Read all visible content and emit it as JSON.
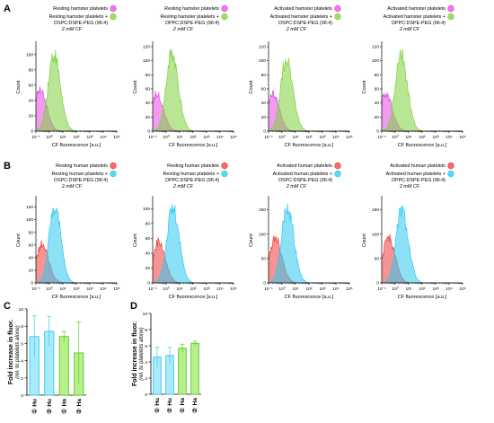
{
  "colors": {
    "hamster_resting": "#e64be6",
    "hamster_lipo": "#7ed23c",
    "human_resting": "#ee3c3c",
    "human_lipo": "#2ec8f0",
    "bar_human": "#a8ecfc",
    "bar_human_edge": "#3cc6ee",
    "bar_hamster": "#b6f08a",
    "bar_hamster_edge": "#5ac82c"
  },
  "panel_labels": {
    "a": "A",
    "b": "B",
    "c": "C",
    "d": "D"
  },
  "chart_data": [
    {
      "id": "A1",
      "type": "area",
      "panel": "A",
      "xlabel": "CF fluorescence [a.u.]",
      "ylabel": "Count",
      "xscale": "log",
      "xlim": [
        0.1,
        100000
      ],
      "ylim": [
        0,
        115
      ],
      "yticks": [
        0,
        20,
        40,
        60,
        80,
        100
      ],
      "xtick_labels": [
        "10⁻¹",
        "10⁰",
        "10¹",
        "10²",
        "10³",
        "10⁴",
        "10⁵"
      ],
      "legend": [
        "Resting hamster platelets",
        "Resting hamster platelets +",
        "DSPC:DSPE-PEG (96:4)",
        "2 mM CF"
      ],
      "series": [
        {
          "name": "Resting hamster platelets",
          "color": "hamster_resting",
          "peak_x": 0.2,
          "peak_y": 57,
          "width": 0.42
        },
        {
          "name": "Resting hamster platelets + DSPC:DSPE-PEG (96:4)",
          "color": "hamster_lipo",
          "peak_x": 2.1,
          "peak_y": 108,
          "width": 0.42
        }
      ]
    },
    {
      "id": "A2",
      "type": "area",
      "panel": "A",
      "xlabel": "CF fluorescence [a.u.]",
      "ylabel": "Count",
      "xscale": "log",
      "xlim": [
        0.1,
        100000
      ],
      "ylim": [
        0,
        125
      ],
      "yticks": [
        0,
        20,
        40,
        60,
        80,
        100,
        120
      ],
      "xtick_labels": [
        "10⁻¹",
        "10⁰",
        "10¹",
        "10²",
        "10³",
        "10⁴",
        "10⁵"
      ],
      "legend": [
        "Resting hamster platelets",
        "Resting hamster platelets +",
        "DPPC:DSPE-PEG (96:4)",
        "2 mM CF"
      ],
      "series": [
        {
          "name": "Resting hamster platelets",
          "color": "hamster_resting",
          "peak_x": 0.2,
          "peak_y": 57,
          "width": 0.42
        },
        {
          "name": "Resting hamster platelets + DPPC:DSPE-PEG (96:4)",
          "color": "hamster_lipo",
          "peak_x": 2.6,
          "peak_y": 118,
          "width": 0.42
        }
      ]
    },
    {
      "id": "A3",
      "type": "area",
      "panel": "A",
      "xlabel": "CF fluorescence [a.u.]",
      "ylabel": "Count",
      "xscale": "log",
      "xlim": [
        0.1,
        100000
      ],
      "ylim": [
        0,
        125
      ],
      "yticks": [
        0,
        20,
        40,
        60,
        80,
        100,
        120
      ],
      "xtick_labels": [
        "10⁻¹",
        "10⁰",
        "10¹",
        "10²",
        "10³",
        "10⁴",
        "10⁵"
      ],
      "legend": [
        "Activated hamster platelets",
        "Activated hamster platelets +",
        "DSPC:DSPE-PEG (96:4)",
        "2 mM CF"
      ],
      "series": [
        {
          "name": "Activated hamster platelets",
          "color": "hamster_resting",
          "peak_x": 0.2,
          "peak_y": 57,
          "width": 0.42
        },
        {
          "name": "Activated hamster platelets + DSPC:DSPE-PEG (96:4)",
          "color": "hamster_lipo",
          "peak_x": 2.1,
          "peak_y": 110,
          "width": 0.42
        }
      ]
    },
    {
      "id": "A4",
      "type": "area",
      "panel": "A",
      "xlabel": "CF fluorescence [a.u.]",
      "ylabel": "Count",
      "xscale": "log",
      "xlim": [
        0.1,
        100000
      ],
      "ylim": [
        0,
        125
      ],
      "yticks": [
        0,
        20,
        40,
        60,
        80,
        100,
        120
      ],
      "xtick_labels": [
        "10⁻¹",
        "10⁰",
        "10¹",
        "10²",
        "10³",
        "10⁴",
        "10⁵"
      ],
      "legend": [
        "Activated hamster platelets",
        "Activated hamster platelets +",
        "DPPC:DSPE-PEG (96:4)",
        "2 mM CF"
      ],
      "series": [
        {
          "name": "Activated hamster platelets",
          "color": "hamster_resting",
          "peak_x": 0.2,
          "peak_y": 57,
          "width": 0.42
        },
        {
          "name": "Activated hamster platelets + DPPC:DSPE-PEG (96:4)",
          "color": "hamster_lipo",
          "peak_x": 2.6,
          "peak_y": 116,
          "width": 0.42
        }
      ]
    },
    {
      "id": "B1",
      "type": "area",
      "panel": "B",
      "xlabel": "CF fluorescence [a.u.]",
      "ylabel": "Count",
      "xscale": "log",
      "xlim": [
        0.1,
        100000
      ],
      "ylim": [
        0,
        135
      ],
      "yticks": [
        0,
        20,
        40,
        60,
        80,
        100,
        120
      ],
      "xtick_labels": [
        "10⁻¹",
        "10⁰",
        "10¹",
        "10²",
        "10³",
        "10⁴",
        "10⁵"
      ],
      "legend": [
        "Resting human platelets",
        "Resting human platelets +",
        "DSPC:DSPE-PEG (96:4)",
        "2 mM CF"
      ],
      "series": [
        {
          "name": "Resting human platelets",
          "color": "human_resting",
          "peak_x": 0.28,
          "peak_y": 65,
          "width": 0.42
        },
        {
          "name": "Resting human platelets + DSPC:DSPE-PEG (96:4)",
          "color": "human_lipo",
          "peak_x": 2.4,
          "peak_y": 130,
          "width": 0.4
        }
      ]
    },
    {
      "id": "B2",
      "type": "area",
      "panel": "B",
      "xlabel": "CF fluorescence [a.u.]",
      "ylabel": "Count",
      "xscale": "log",
      "xlim": [
        0.1,
        100000
      ],
      "ylim": [
        0,
        115
      ],
      "yticks": [
        0,
        20,
        40,
        60,
        80,
        100
      ],
      "xtick_labels": [
        "10⁻¹",
        "10⁰",
        "10¹",
        "10²",
        "10³",
        "10⁴",
        "10⁵"
      ],
      "legend": [
        "Resting human platelets",
        "Resting human platelets +",
        "DPPC:DSPE-PEG (96:4)",
        "2 mM CF"
      ],
      "series": [
        {
          "name": "Resting human platelets",
          "color": "human_resting",
          "peak_x": 0.28,
          "peak_y": 60,
          "width": 0.42
        },
        {
          "name": "Resting human platelets + DPPC:DSPE-PEG (96:4)",
          "color": "human_lipo",
          "peak_x": 3.0,
          "peak_y": 108,
          "width": 0.42
        }
      ]
    },
    {
      "id": "B3",
      "type": "area",
      "panel": "B",
      "xlabel": "CF fluorescence [a.u.]",
      "ylabel": "Count",
      "xscale": "log",
      "xlim": [
        0.1,
        100000
      ],
      "ylim": [
        0,
        175
      ],
      "yticks": [
        0,
        50,
        100,
        150
      ],
      "xtick_labels": [
        "10⁻¹",
        "10⁰",
        "10¹",
        "10²",
        "10³",
        "10⁴",
        "10⁵"
      ],
      "legend": [
        "Activated human platelets",
        "Activated human platelets +",
        "DSPC:DSPE-PEG (96:4)",
        "2 mM CF"
      ],
      "series": [
        {
          "name": "Activated human platelets",
          "color": "human_resting",
          "peak_x": 0.32,
          "peak_y": 100,
          "width": 0.42
        },
        {
          "name": "Activated human platelets + DSPC:DSPE-PEG (96:4)",
          "color": "human_lipo",
          "peak_x": 2.4,
          "peak_y": 168,
          "width": 0.42
        }
      ]
    },
    {
      "id": "B4",
      "type": "area",
      "panel": "B",
      "xlabel": "CF fluorescence [a.u.]",
      "ylabel": "Count",
      "xscale": "log",
      "xlim": [
        0.1,
        100000
      ],
      "ylim": [
        0,
        175
      ],
      "yticks": [
        0,
        50,
        100,
        150
      ],
      "xtick_labels": [
        "10⁻¹",
        "10⁰",
        "10¹",
        "10²",
        "10³",
        "10⁴",
        "10⁵"
      ],
      "legend": [
        "Activated human platelets",
        "Activated human platelets +",
        "DPPC:DSPE-PEG (96:4)",
        "2 mM CF"
      ],
      "series": [
        {
          "name": "Activated human platelets",
          "color": "human_resting",
          "peak_x": 0.32,
          "peak_y": 100,
          "width": 0.42
        },
        {
          "name": "Activated human platelets + DPPC:DSPE-PEG (96:4)",
          "color": "human_lipo",
          "peak_x": 3.0,
          "peak_y": 160,
          "width": 0.42
        }
      ]
    },
    {
      "id": "C",
      "type": "bar",
      "panel": "C",
      "ylabel": "Fold increase in fluor.",
      "ylabel_sub": "(rel. to platelets alone)",
      "ylim": [
        0,
        10
      ],
      "yticks": [
        0,
        2,
        4,
        6,
        8,
        10
      ],
      "categories": [
        "Hu",
        "Hu",
        "Ha",
        "Ha"
      ],
      "category_marks": [
        "①",
        "②",
        "①",
        "②"
      ],
      "values": [
        6.8,
        7.4,
        6.8,
        4.9
      ],
      "errors": [
        2.4,
        1.7,
        0.6,
        3.6
      ],
      "bar_colors": [
        "bar_human",
        "bar_human",
        "bar_hamster",
        "bar_hamster"
      ]
    },
    {
      "id": "D",
      "type": "bar",
      "panel": "D",
      "ylabel": "Fold increase in fluor.",
      "ylabel_sub": "(rel. to platelets alone)",
      "ylim": [
        0,
        10
      ],
      "yticks": [
        0,
        2,
        4,
        6,
        8,
        10
      ],
      "categories": [
        "Hu",
        "Hu",
        "Ha",
        "Ha"
      ],
      "category_marks": [
        "①",
        "②",
        "①",
        "②"
      ],
      "values": [
        4.6,
        4.8,
        5.7,
        6.3
      ],
      "errors": [
        1.2,
        1.0,
        0.5,
        0.25
      ],
      "bar_colors": [
        "bar_human",
        "bar_human",
        "bar_hamster",
        "bar_hamster"
      ]
    }
  ]
}
